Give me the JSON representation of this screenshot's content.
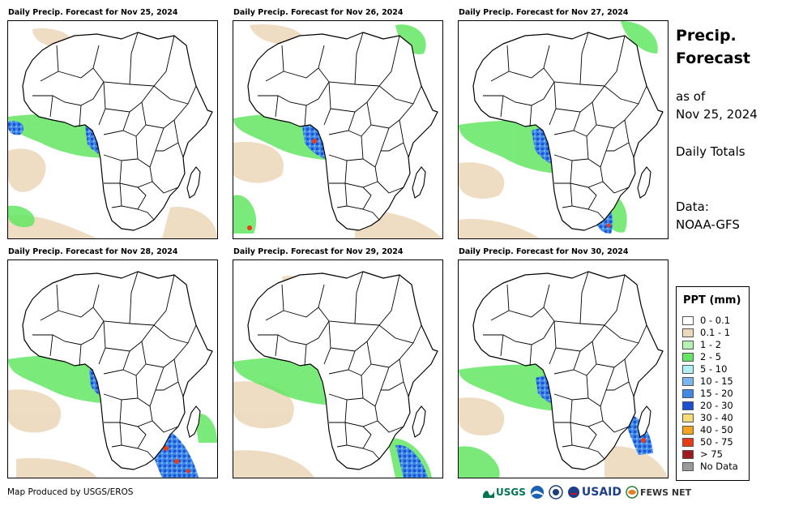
{
  "panels": [
    {
      "title": "Daily Precip. Forecast for Nov 25, 2024"
    },
    {
      "title": "Daily Precip. Forecast for Nov 26, 2024"
    },
    {
      "title": "Daily Precip. Forecast for Nov 27, 2024"
    },
    {
      "title": "Daily Precip. Forecast for Nov 28, 2024"
    },
    {
      "title": "Daily Precip. Forecast for Nov 29, 2024"
    },
    {
      "title": "Daily Precip. Forecast for Nov 30, 2024"
    }
  ],
  "side": {
    "title_line1": "Precip.",
    "title_line2": "Forecast",
    "asof_line1": "as of",
    "asof_line2": "Nov 25, 2024",
    "totals": "Daily Totals",
    "data_line1": "Data:",
    "data_line2": "NOAA-GFS"
  },
  "legend": {
    "title": "PPT (mm)",
    "items": [
      {
        "label": "0 - 0.1",
        "color": "#ffffff"
      },
      {
        "label": "0.1 - 1",
        "color": "#ecd9bc"
      },
      {
        "label": "1 - 2",
        "color": "#b4f2b4"
      },
      {
        "label": "2 - 5",
        "color": "#63e663"
      },
      {
        "label": "5 - 10",
        "color": "#aef0f5"
      },
      {
        "label": "10 - 15",
        "color": "#7cb6f0"
      },
      {
        "label": "15 - 20",
        "color": "#3f8ae8"
      },
      {
        "label": "20 - 30",
        "color": "#1c4fd6"
      },
      {
        "label": "30 - 40",
        "color": "#f5dc7a"
      },
      {
        "label": "40 - 50",
        "color": "#f5a21c"
      },
      {
        "label": "50 - 75",
        "color": "#ea3b14"
      },
      {
        "label": "> 75",
        "color": "#a0181e"
      },
      {
        "label": "No Data",
        "color": "#9a9a9a"
      }
    ]
  },
  "footer": {
    "credit": "Map Produced by USGS/EROS",
    "logo_usgs": "USGS",
    "logo_usaid": "USAID",
    "logo_fews": "FEWS NET"
  }
}
